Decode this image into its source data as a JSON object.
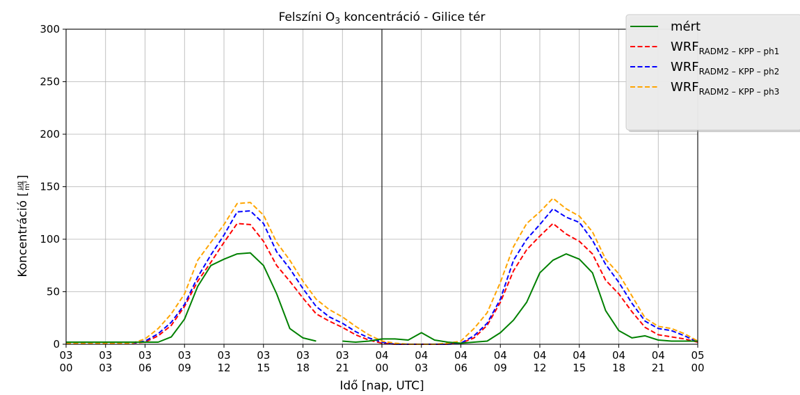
{
  "chart_data": {
    "type": "line",
    "title": "Felszíni O3 koncentráció - Gilice tér",
    "title_main": "Felszíni O",
    "title_sub": "3",
    "title_rest": " koncentráció - Gilice tér",
    "xlabel": "Idő [nap, UTC]",
    "ylabel": "Koncentráció [µg/m³]",
    "ylabel_main": "Koncentráció [",
    "ylabel_num": "µg",
    "ylabel_den": "m³",
    "ylabel_close": "]",
    "ylim": [
      0,
      300
    ],
    "yticks": [
      0,
      50,
      100,
      150,
      200,
      250,
      300
    ],
    "xlim": [
      0,
      48
    ],
    "xticks": [
      {
        "x": 0,
        "day": "03",
        "hour": "00"
      },
      {
        "x": 3,
        "day": "03",
        "hour": "03"
      },
      {
        "x": 6,
        "day": "03",
        "hour": "06"
      },
      {
        "x": 9,
        "day": "03",
        "hour": "09"
      },
      {
        "x": 12,
        "day": "03",
        "hour": "12"
      },
      {
        "x": 15,
        "day": "03",
        "hour": "15"
      },
      {
        "x": 18,
        "day": "03",
        "hour": "18"
      },
      {
        "x": 21,
        "day": "03",
        "hour": "21"
      },
      {
        "x": 24,
        "day": "04",
        "hour": "00"
      },
      {
        "x": 27,
        "day": "04",
        "hour": "03"
      },
      {
        "x": 30,
        "day": "04",
        "hour": "06"
      },
      {
        "x": 33,
        "day": "04",
        "hour": "09"
      },
      {
        "x": 36,
        "day": "04",
        "hour": "12"
      },
      {
        "x": 39,
        "day": "04",
        "hour": "15"
      },
      {
        "x": 42,
        "day": "04",
        "hour": "18"
      },
      {
        "x": 45,
        "day": "04",
        "hour": "21"
      },
      {
        "x": 48,
        "day": "05",
        "hour": "00"
      }
    ],
    "day_separator_x": 24,
    "grid": true,
    "legend_position": "top-right",
    "series": [
      {
        "name": "mért",
        "label_main": "mért",
        "label_sub": "",
        "color": "#008000",
        "style": "solid",
        "x": [
          0,
          1,
          2,
          3,
          4,
          5,
          6,
          7,
          8,
          9,
          10,
          11,
          12,
          13,
          14,
          15,
          16,
          17,
          18,
          19,
          20,
          21,
          22,
          23,
          24,
          25,
          26,
          27,
          28,
          29,
          30,
          31,
          32,
          33,
          34,
          35,
          36,
          37,
          38,
          39,
          40,
          41,
          42,
          43,
          44,
          45,
          46,
          47,
          48
        ],
        "values": [
          2,
          2,
          2,
          2,
          2,
          2,
          2,
          2,
          7,
          24,
          55,
          75,
          81,
          86,
          87,
          75,
          48,
          15,
          6,
          3,
          null,
          3,
          2,
          3,
          5,
          5,
          4,
          11,
          4,
          2,
          1,
          2,
          3,
          11,
          23,
          40,
          68,
          80,
          86,
          81,
          68,
          32,
          13,
          6,
          8,
          4,
          3,
          3,
          3
        ]
      },
      {
        "name": "WRF RADM2 – KPP – ph1",
        "label_main": "WRF",
        "label_sub": "RADM2 – KPP – ph1",
        "color": "#ff0000",
        "style": "dashed",
        "x": [
          0,
          1,
          2,
          3,
          4,
          5,
          6,
          7,
          8,
          9,
          10,
          11,
          12,
          13,
          14,
          15,
          16,
          17,
          18,
          19,
          20,
          21,
          22,
          23,
          24,
          25,
          26,
          27,
          28,
          29,
          30,
          31,
          32,
          33,
          34,
          35,
          36,
          37,
          38,
          39,
          40,
          41,
          42,
          43,
          44,
          45,
          46,
          47,
          48
        ],
        "values": [
          1,
          1,
          1,
          1,
          1,
          1,
          2,
          8,
          18,
          36,
          60,
          78,
          97,
          115,
          114,
          98,
          75,
          60,
          44,
          29,
          22,
          16,
          9,
          4,
          1,
          0,
          0,
          0,
          0,
          0,
          1,
          6,
          18,
          40,
          70,
          90,
          103,
          115,
          105,
          98,
          86,
          61,
          48,
          31,
          16,
          9,
          7,
          5,
          2
        ]
      },
      {
        "name": "WRF RADM2 – KPP – ph2",
        "label_main": "WRF",
        "label_sub": "RADM2 – KPP – ph2",
        "color": "#0000ff",
        "style": "dashed",
        "x": [
          0,
          1,
          2,
          3,
          4,
          5,
          6,
          7,
          8,
          9,
          10,
          11,
          12,
          13,
          14,
          15,
          16,
          17,
          18,
          19,
          20,
          21,
          22,
          23,
          24,
          25,
          26,
          27,
          28,
          29,
          30,
          31,
          32,
          33,
          34,
          35,
          36,
          37,
          38,
          39,
          40,
          41,
          42,
          43,
          44,
          45,
          46,
          47,
          48
        ],
        "values": [
          1,
          1,
          1,
          1,
          1,
          1,
          3,
          10,
          21,
          38,
          64,
          85,
          104,
          126,
          127,
          115,
          88,
          72,
          53,
          36,
          26,
          20,
          12,
          6,
          2,
          0,
          0,
          0,
          0,
          0,
          1,
          8,
          20,
          43,
          80,
          100,
          114,
          129,
          121,
          116,
          99,
          76,
          59,
          39,
          22,
          15,
          13,
          8,
          2
        ]
      },
      {
        "name": "WRF RADM2 – KPP – ph3",
        "label_main": "WRF",
        "label_sub": "RADM2 – KPP – ph3",
        "color": "#ffa500",
        "style": "dashed",
        "x": [
          0,
          1,
          2,
          3,
          4,
          5,
          6,
          7,
          8,
          9,
          10,
          11,
          12,
          13,
          14,
          15,
          16,
          17,
          18,
          19,
          20,
          21,
          22,
          23,
          24,
          25,
          26,
          27,
          28,
          29,
          30,
          31,
          32,
          33,
          34,
          35,
          36,
          37,
          38,
          39,
          40,
          41,
          42,
          43,
          44,
          45,
          46,
          47,
          48
        ],
        "values": [
          1,
          1,
          1,
          1,
          1,
          1,
          5,
          15,
          29,
          48,
          80,
          97,
          114,
          134,
          135,
          123,
          97,
          80,
          60,
          43,
          33,
          26,
          17,
          9,
          3,
          1,
          0,
          0,
          0,
          1,
          3,
          15,
          30,
          59,
          93,
          115,
          126,
          139,
          129,
          122,
          107,
          81,
          67,
          46,
          25,
          17,
          15,
          10,
          3
        ]
      }
    ]
  }
}
